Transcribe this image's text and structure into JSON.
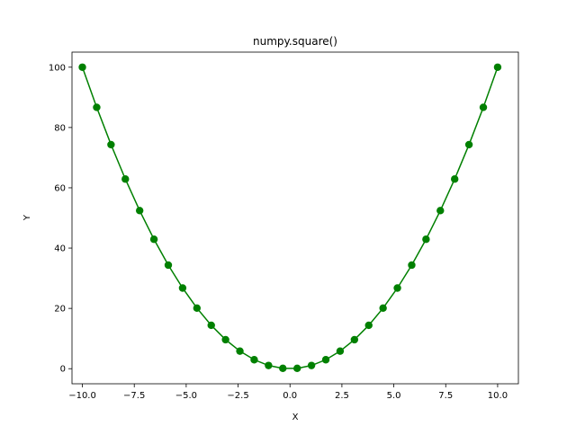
{
  "chart_data": {
    "type": "line",
    "title": "numpy.square()",
    "xlabel": "X",
    "ylabel": "Y",
    "xlim": [
      -10.5,
      11.0
    ],
    "ylim": [
      -5,
      105
    ],
    "grid": false,
    "x_ticks": [
      -10.0,
      -7.5,
      -5.0,
      -2.5,
      0.0,
      2.5,
      5.0,
      7.5,
      10.0
    ],
    "x_tick_labels": [
      "−10.0",
      "−7.5",
      "−5.0",
      "−2.5",
      "0.0",
      "2.5",
      "5.0",
      "7.5",
      "10.0"
    ],
    "y_ticks": [
      0,
      20,
      40,
      60,
      80,
      100
    ],
    "y_tick_labels": [
      "0",
      "20",
      "40",
      "60",
      "80",
      "100"
    ],
    "color": "#008000",
    "series": [
      {
        "x": [
          -10.0,
          -9.3103,
          -8.6207,
          -7.931,
          -7.2414,
          -6.5517,
          -5.8621,
          -5.1724,
          -4.4828,
          -3.7931,
          -3.1034,
          -2.4138,
          -1.7241,
          -1.0345,
          -0.3448,
          0.3448,
          1.0345,
          1.7241,
          2.4138,
          3.1034,
          3.7931,
          4.4828,
          5.1724,
          5.8621,
          6.5517,
          7.2414,
          7.931,
          8.6207,
          9.3103,
          10.0
        ],
        "y": [
          100.0,
          86.68,
          74.32,
          62.9,
          52.44,
          42.93,
          34.36,
          26.75,
          20.1,
          14.39,
          9.63,
          5.83,
          2.97,
          1.07,
          0.12,
          0.12,
          1.07,
          2.97,
          5.83,
          9.63,
          14.39,
          20.1,
          26.75,
          34.36,
          42.93,
          52.44,
          62.9,
          74.32,
          86.68,
          100.0
        ]
      }
    ]
  }
}
